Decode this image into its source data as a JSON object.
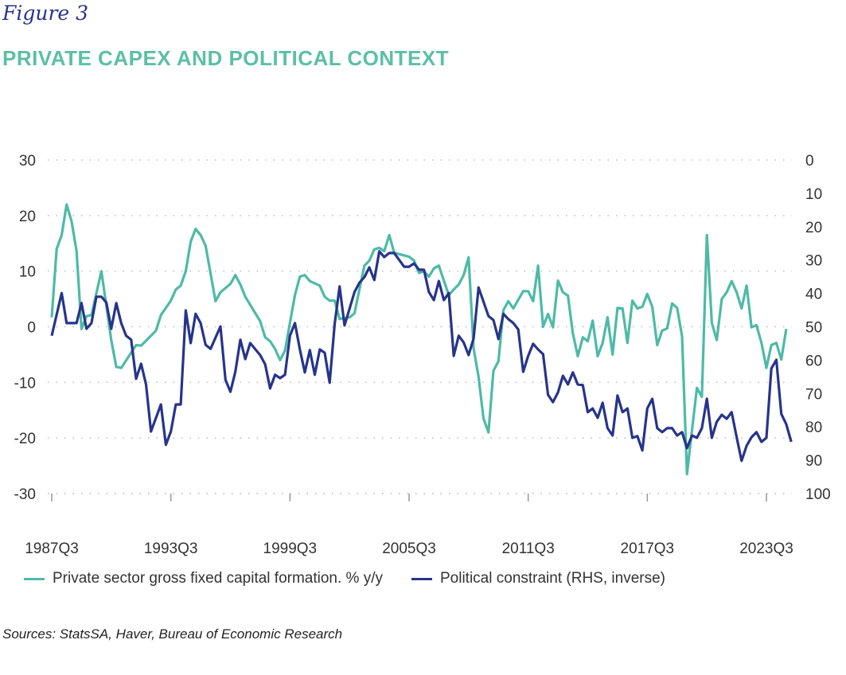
{
  "figure_label": "Figure 3",
  "title": "PRIVATE CAPEX AND POLITICAL CONTEXT",
  "source": "Sources: StatsSA, Haver, Bureau of Economic Research",
  "colors": {
    "capex": "#4dbaa6",
    "political": "#27348b",
    "title": "#5bbfa6"
  },
  "chart_data": {
    "type": "line",
    "title": "",
    "xlabel": "",
    "ylabel": "",
    "x_ticks": [
      "1987Q3",
      "1993Q3",
      "1999Q3",
      "2005Q3",
      "2011Q3",
      "2017Q3",
      "2023Q3"
    ],
    "ylim_left": [
      -30,
      30
    ],
    "y_ticks_left": [
      "30",
      "20",
      "10",
      "0",
      "-10",
      "-20",
      "-30"
    ],
    "ylim_right": [
      0,
      100
    ],
    "right_axis_inverted": true,
    "y_ticks_right": [
      "0",
      "10",
      "20",
      "30",
      "40",
      "50",
      "60",
      "70",
      "80",
      "90",
      "100"
    ],
    "grid": "horizontal dotted",
    "legend_position": "bottom",
    "series": [
      {
        "name": "Private sector gross fixed capital formation. % y/y",
        "axis": "left",
        "color": "#4dbaa6",
        "points": [
          [
            "1987Q3",
            1.7
          ],
          [
            "1987Q4",
            14
          ],
          [
            "1988Q1",
            16.5
          ],
          [
            "1988Q2",
            22
          ],
          [
            "1988Q3",
            19
          ],
          [
            "1988Q4",
            13.6
          ],
          [
            "1989Q1",
            -0.4
          ],
          [
            "1989Q2",
            1.9
          ],
          [
            "1989Q3",
            2.1
          ],
          [
            "1990Q1",
            10
          ],
          [
            "1990Q3",
            -2.4
          ],
          [
            "1990Q4",
            -7.2
          ],
          [
            "1991Q1",
            -7.4
          ],
          [
            "1991Q4",
            -3.3
          ],
          [
            "1992Q1",
            -3.4
          ],
          [
            "1992Q4",
            -0.7
          ],
          [
            "1993Q1",
            2.1
          ],
          [
            "1993Q3",
            4.7
          ],
          [
            "1993Q4",
            6.7
          ],
          [
            "1994Q1",
            7.4
          ],
          [
            "1994Q2",
            10
          ],
          [
            "1994Q3",
            15.3
          ],
          [
            "1994Q4",
            17.6
          ],
          [
            "1995Q1",
            16.5
          ],
          [
            "1995Q2",
            14.6
          ],
          [
            "1995Q4",
            4.6
          ],
          [
            "1996Q1",
            6.2
          ],
          [
            "1996Q3",
            7.7
          ],
          [
            "1996Q4",
            9.3
          ],
          [
            "1997Q1",
            7.6
          ],
          [
            "1997Q2",
            5.4
          ],
          [
            "1998Q1",
            1
          ],
          [
            "1998Q2",
            -1.9
          ],
          [
            "1998Q3",
            -2.6
          ],
          [
            "1998Q4",
            -4
          ],
          [
            "1999Q1",
            -6
          ],
          [
            "1999Q2",
            -4.3
          ],
          [
            "1999Q3",
            0.7
          ],
          [
            "1999Q4",
            5.7
          ],
          [
            "2000Q1",
            9
          ],
          [
            "2000Q2",
            9.3
          ],
          [
            "2000Q3",
            8.2
          ],
          [
            "2001Q1",
            7.4
          ],
          [
            "2001Q2",
            5.4
          ],
          [
            "2001Q3",
            4.7
          ],
          [
            "2001Q4",
            4.7
          ],
          [
            "2002Q1",
            1.4
          ],
          [
            "2002Q3",
            1.7
          ],
          [
            "2002Q4",
            2.4
          ],
          [
            "2003Q1",
            6.7
          ],
          [
            "2003Q2",
            11
          ],
          [
            "2003Q3",
            11.9
          ],
          [
            "2003Q4",
            13.9
          ],
          [
            "2004Q1",
            14.2
          ],
          [
            "2004Q2",
            13.6
          ],
          [
            "2004Q3",
            16.5
          ],
          [
            "2004Q4",
            13.3
          ],
          [
            "2005Q3",
            12.6
          ],
          [
            "2005Q4",
            11.9
          ],
          [
            "2006Q1",
            9.7
          ],
          [
            "2006Q2",
            10
          ],
          [
            "2006Q3",
            9
          ],
          [
            "2006Q4",
            10.5
          ],
          [
            "2007Q1",
            11
          ],
          [
            "2007Q3",
            5.7
          ],
          [
            "2007Q4",
            6.7
          ],
          [
            "2008Q1",
            7.6
          ],
          [
            "2008Q2",
            9.3
          ],
          [
            "2008Q3",
            12.5
          ],
          [
            "2008Q4",
            -3.9
          ],
          [
            "2009Q1",
            -9
          ],
          [
            "2009Q2",
            -16.5
          ],
          [
            "2009Q3",
            -19
          ],
          [
            "2009Q4",
            -7.9
          ],
          [
            "2010Q1",
            -6.2
          ],
          [
            "2010Q2",
            3
          ],
          [
            "2010Q3",
            4.6
          ],
          [
            "2010Q4",
            3.3
          ],
          [
            "2011Q2",
            6.4
          ],
          [
            "2011Q3",
            6.4
          ],
          [
            "2011Q4",
            4.6
          ],
          [
            "2012Q1",
            11
          ],
          [
            "2012Q2",
            0
          ],
          [
            "2012Q3",
            2.3
          ],
          [
            "2012Q4",
            -0.1
          ],
          [
            "2013Q1",
            8.3
          ],
          [
            "2013Q2",
            6.2
          ],
          [
            "2013Q3",
            5.6
          ],
          [
            "2013Q4",
            -1.2
          ],
          [
            "2014Q1",
            -5.3
          ],
          [
            "2014Q2",
            -1.9
          ],
          [
            "2014Q3",
            -2.6
          ],
          [
            "2014Q4",
            1.1
          ],
          [
            "2015Q1",
            -5.3
          ],
          [
            "2015Q2",
            -2.9
          ],
          [
            "2015Q3",
            1.7
          ],
          [
            "2015Q4",
            -5
          ],
          [
            "2016Q1",
            3.4
          ],
          [
            "2016Q2",
            3.3
          ],
          [
            "2016Q3",
            -2.9
          ],
          [
            "2016Q4",
            4.7
          ],
          [
            "2017Q1",
            3.3
          ],
          [
            "2017Q2",
            3.6
          ],
          [
            "2017Q3",
            5.9
          ],
          [
            "2017Q4",
            3.6
          ],
          [
            "2018Q1",
            -3.3
          ],
          [
            "2018Q2",
            -0.7
          ],
          [
            "2018Q3",
            -0.3
          ],
          [
            "2018Q4",
            4.2
          ],
          [
            "2019Q1",
            3.4
          ],
          [
            "2019Q2",
            -1.7
          ],
          [
            "2019Q3",
            -26.5
          ],
          [
            "2019Q4",
            -18.6
          ],
          [
            "2020Q1",
            -11
          ],
          [
            "2020Q2",
            -12.6
          ],
          [
            "2020Q3",
            16.5
          ],
          [
            "2020Q4",
            0.7
          ],
          [
            "2021Q1",
            -2.4
          ],
          [
            "2021Q2",
            5
          ],
          [
            "2021Q3",
            6.2
          ],
          [
            "2021Q4",
            8.2
          ],
          [
            "2022Q1",
            6.2
          ],
          [
            "2022Q2",
            3.3
          ],
          [
            "2022Q3",
            7.4
          ],
          [
            "2022Q4",
            -0.1
          ],
          [
            "2023Q1",
            0.3
          ],
          [
            "2023Q2",
            -2.9
          ],
          [
            "2023Q3",
            -7.4
          ],
          [
            "2023Q4",
            -3.3
          ],
          [
            "2024Q1",
            -2.9
          ],
          [
            "2024Q2",
            -5.9
          ],
          [
            "2024Q3",
            -0.4
          ]
        ]
      },
      {
        "name": "Political constraint (RHS, inverse)",
        "axis": "right",
        "color": "#27348b",
        "points": [
          [
            "1987Q3",
            52.7
          ],
          [
            "1988Q1",
            39.9
          ],
          [
            "1988Q2",
            48.9
          ],
          [
            "1988Q4",
            48.9
          ],
          [
            "1989Q1",
            42.9
          ],
          [
            "1989Q2",
            50.6
          ],
          [
            "1989Q3",
            48.9
          ],
          [
            "1989Q4",
            41
          ],
          [
            "1990Q1",
            41
          ],
          [
            "1990Q2",
            42.7
          ],
          [
            "1990Q3",
            50.6
          ],
          [
            "1990Q4",
            42.9
          ],
          [
            "1991Q1",
            48.9
          ],
          [
            "1991Q2",
            52.7
          ],
          [
            "1991Q3",
            53.9
          ],
          [
            "1991Q4",
            65.6
          ],
          [
            "1992Q1",
            61.1
          ],
          [
            "1992Q2",
            67.3
          ],
          [
            "1992Q3",
            81.4
          ],
          [
            "1993Q1",
            73.3
          ],
          [
            "1993Q2",
            85.4
          ],
          [
            "1993Q3",
            81.4
          ],
          [
            "1993Q4",
            73.3
          ],
          [
            "1994Q1",
            73.3
          ],
          [
            "1994Q2",
            45.1
          ],
          [
            "1994Q3",
            54.9
          ],
          [
            "1994Q4",
            46.1
          ],
          [
            "1995Q1",
            48.9
          ],
          [
            "1995Q2",
            55.4
          ],
          [
            "1995Q3",
            56.6
          ],
          [
            "1996Q1",
            49.9
          ],
          [
            "1996Q2",
            65.9
          ],
          [
            "1996Q3",
            69.5
          ],
          [
            "1996Q4",
            63.5
          ],
          [
            "1997Q1",
            53.9
          ],
          [
            "1997Q2",
            59.7
          ],
          [
            "1997Q3",
            54.9
          ],
          [
            "1998Q1",
            58.5
          ],
          [
            "1998Q2",
            61.3
          ],
          [
            "1998Q3",
            68.5
          ],
          [
            "1998Q4",
            64.4
          ],
          [
            "1999Q1",
            65.4
          ],
          [
            "1999Q2",
            64.4
          ],
          [
            "1999Q3",
            52.7
          ],
          [
            "1999Q4",
            48.9
          ],
          [
            "2000Q1",
            56.8
          ],
          [
            "2000Q2",
            63.7
          ],
          [
            "2000Q3",
            57
          ],
          [
            "2000Q4",
            64.4
          ],
          [
            "2001Q1",
            56.8
          ],
          [
            "2001Q2",
            57.8
          ],
          [
            "2001Q3",
            66.8
          ],
          [
            "2001Q4",
            49.2
          ],
          [
            "2002Q1",
            37.9
          ],
          [
            "2002Q2",
            49.6
          ],
          [
            "2002Q3",
            44.6
          ],
          [
            "2002Q4",
            39.6
          ],
          [
            "2003Q1",
            36.8
          ],
          [
            "2003Q2",
            35.1
          ],
          [
            "2003Q3",
            32.2
          ],
          [
            "2003Q4",
            36
          ],
          [
            "2004Q1",
            27.4
          ],
          [
            "2004Q2",
            29.1
          ],
          [
            "2004Q3",
            27.9
          ],
          [
            "2004Q4",
            27.9
          ],
          [
            "2005Q2",
            32
          ],
          [
            "2005Q3",
            32
          ],
          [
            "2005Q4",
            31
          ],
          [
            "2006Q1",
            32.9
          ],
          [
            "2006Q2",
            32.9
          ],
          [
            "2006Q3",
            39.6
          ],
          [
            "2006Q4",
            42
          ],
          [
            "2007Q1",
            36.3
          ],
          [
            "2007Q2",
            42
          ],
          [
            "2007Q3",
            39.9
          ],
          [
            "2007Q4",
            58.7
          ],
          [
            "2008Q1",
            52.7
          ],
          [
            "2008Q2",
            54.7
          ],
          [
            "2008Q3",
            58.5
          ],
          [
            "2008Q4",
            53.5
          ],
          [
            "2009Q1",
            38.2
          ],
          [
            "2009Q3",
            46.8
          ],
          [
            "2009Q4",
            48
          ],
          [
            "2010Q1",
            53.7
          ],
          [
            "2010Q2",
            46.1
          ],
          [
            "2010Q3",
            47.7
          ],
          [
            "2010Q4",
            48.9
          ],
          [
            "2011Q1",
            50.8
          ],
          [
            "2011Q2",
            63.5
          ],
          [
            "2011Q3",
            58.7
          ],
          [
            "2011Q4",
            55.1
          ],
          [
            "2012Q1",
            56.8
          ],
          [
            "2012Q2",
            58.2
          ],
          [
            "2012Q3",
            70.4
          ],
          [
            "2012Q4",
            72.6
          ],
          [
            "2013Q1",
            69.7
          ],
          [
            "2013Q2",
            64.7
          ],
          [
            "2013Q3",
            67.3
          ],
          [
            "2013Q4",
            63.7
          ],
          [
            "2014Q1",
            67.3
          ],
          [
            "2014Q2",
            67.5
          ],
          [
            "2014Q3",
            75.6
          ],
          [
            "2014Q4",
            74.5
          ],
          [
            "2015Q1",
            77.3
          ],
          [
            "2015Q2",
            72.8
          ],
          [
            "2015Q3",
            80.4
          ],
          [
            "2015Q4",
            82.6
          ],
          [
            "2016Q1",
            70.6
          ],
          [
            "2016Q2",
            75.6
          ],
          [
            "2016Q3",
            74.5
          ],
          [
            "2016Q4",
            83.3
          ],
          [
            "2017Q1",
            82.8
          ],
          [
            "2017Q2",
            87.1
          ],
          [
            "2017Q3",
            74.5
          ],
          [
            "2017Q4",
            71.6
          ],
          [
            "2018Q1",
            80.4
          ],
          [
            "2018Q2",
            81.6
          ],
          [
            "2018Q3",
            80.4
          ],
          [
            "2018Q4",
            80.4
          ],
          [
            "2019Q1",
            82.6
          ],
          [
            "2019Q2",
            81.6
          ],
          [
            "2019Q3",
            86.4
          ],
          [
            "2019Q4",
            82.6
          ],
          [
            "2020Q1",
            83.3
          ],
          [
            "2020Q2",
            80.4
          ],
          [
            "2020Q3",
            71.6
          ],
          [
            "2020Q4",
            83.3
          ],
          [
            "2021Q1",
            78.5
          ],
          [
            "2021Q2",
            76.4
          ],
          [
            "2021Q3",
            77.6
          ],
          [
            "2021Q4",
            75.6
          ],
          [
            "2022Q1",
            83.1
          ],
          [
            "2022Q2",
            90.2
          ],
          [
            "2022Q3",
            85.7
          ],
          [
            "2022Q4",
            83.1
          ],
          [
            "2023Q1",
            81.6
          ],
          [
            "2023Q2",
            84.5
          ],
          [
            "2023Q3",
            83.3
          ],
          [
            "2023Q4",
            62.5
          ],
          [
            "2024Q1",
            59.9
          ],
          [
            "2024Q2",
            76.1
          ],
          [
            "2024Q3",
            79.2
          ],
          [
            "2024Q4",
            84.5
          ]
        ]
      }
    ]
  }
}
